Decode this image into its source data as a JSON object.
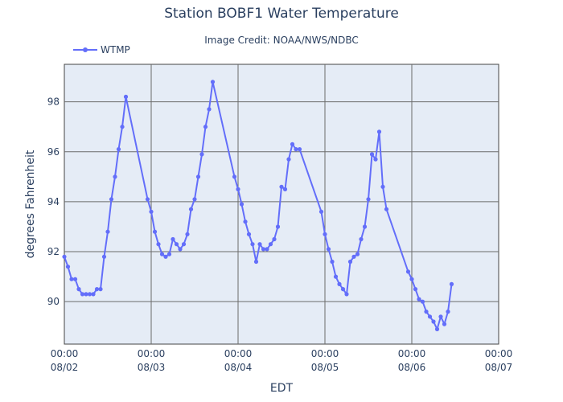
{
  "chart_data": {
    "type": "line",
    "title": "Station BOBF1 Water Temperature",
    "subtitle": "Image Credit: NOAA/NWS/NDBC",
    "xlabel": "EDT",
    "ylabel": "degrees Fahrenheit",
    "ylim": [
      88.3,
      99.5
    ],
    "yticks": [
      90,
      92,
      94,
      96,
      98
    ],
    "xlim_days": [
      0,
      5
    ],
    "xticks": [
      {
        "time": "00:00",
        "date": "08/02"
      },
      {
        "time": "00:00",
        "date": "08/03"
      },
      {
        "time": "00:00",
        "date": "08/04"
      },
      {
        "time": "00:00",
        "date": "08/05"
      },
      {
        "time": "00:00",
        "date": "08/06"
      },
      {
        "time": "00:00",
        "date": "08/07"
      }
    ],
    "grid": true,
    "legend": "top-left",
    "colors": {
      "line": "#636efa",
      "plot_bg": "#e5ecf6",
      "grid": "#6b6b6b"
    },
    "series": [
      {
        "name": "WTMP",
        "x": [
          0.0,
          0.042,
          0.083,
          0.125,
          0.167,
          0.208,
          0.25,
          0.292,
          0.333,
          0.375,
          0.417,
          0.458,
          0.5,
          0.542,
          0.583,
          0.625,
          0.667,
          0.708,
          0.958,
          1.0,
          1.042,
          1.083,
          1.125,
          1.167,
          1.208,
          1.25,
          1.292,
          1.333,
          1.375,
          1.417,
          1.458,
          1.5,
          1.542,
          1.583,
          1.625,
          1.667,
          1.708,
          1.958,
          2.0,
          2.042,
          2.083,
          2.125,
          2.167,
          2.208,
          2.25,
          2.292,
          2.333,
          2.375,
          2.417,
          2.458,
          2.5,
          2.542,
          2.583,
          2.625,
          2.667,
          2.708,
          2.958,
          3.0,
          3.042,
          3.083,
          3.125,
          3.167,
          3.208,
          3.25,
          3.292,
          3.333,
          3.375,
          3.417,
          3.458,
          3.5,
          3.542,
          3.583,
          3.625,
          3.667,
          3.708,
          3.958,
          4.0,
          4.042,
          4.083,
          4.125,
          4.167,
          4.208,
          4.25,
          4.292,
          4.333,
          4.375,
          4.417,
          4.458
        ],
        "values": [
          91.8,
          91.4,
          90.9,
          90.9,
          90.5,
          90.3,
          90.3,
          90.3,
          90.3,
          90.5,
          90.5,
          91.8,
          92.8,
          94.1,
          95.0,
          96.1,
          97.0,
          98.2,
          94.1,
          93.6,
          92.8,
          92.3,
          91.9,
          91.8,
          91.9,
          92.5,
          92.3,
          92.1,
          92.3,
          92.7,
          93.7,
          94.1,
          95.0,
          95.9,
          97.0,
          97.7,
          98.8,
          95.0,
          94.5,
          93.9,
          93.2,
          92.7,
          92.3,
          91.6,
          92.3,
          92.1,
          92.1,
          92.3,
          92.5,
          93.0,
          94.6,
          94.5,
          95.7,
          96.3,
          96.1,
          96.1,
          93.6,
          92.7,
          92.1,
          91.6,
          91.0,
          90.7,
          90.5,
          90.3,
          91.6,
          91.8,
          91.9,
          92.5,
          93.0,
          94.1,
          95.9,
          95.7,
          96.8,
          94.6,
          93.7,
          91.2,
          90.9,
          90.5,
          90.1,
          90.0,
          89.6,
          89.4,
          89.2,
          88.9,
          89.4,
          89.1,
          89.6,
          90.7
        ]
      }
    ]
  }
}
